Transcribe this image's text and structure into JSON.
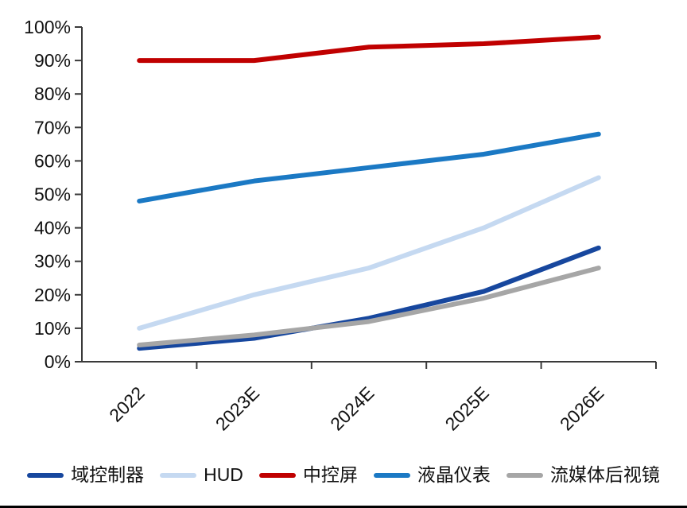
{
  "chart_data": {
    "type": "line",
    "title": "",
    "xlabel": "",
    "ylabel": "",
    "categories": [
      "2022",
      "2023E",
      "2024E",
      "2025E",
      "2026E"
    ],
    "series": [
      {
        "name": "域控制器",
        "color": "#17479E",
        "values": [
          4,
          7,
          13,
          21,
          34
        ]
      },
      {
        "name": "HUD",
        "color": "#C5D9F1",
        "values": [
          10,
          20,
          28,
          40,
          55
        ]
      },
      {
        "name": "中控屏",
        "color": "#C00000",
        "values": [
          90,
          90,
          94,
          95,
          97
        ]
      },
      {
        "name": "液晶仪表",
        "color": "#1B79C4",
        "values": [
          48,
          54,
          58,
          62,
          68
        ]
      },
      {
        "name": "流媒体后视镜",
        "color": "#A6A6A6",
        "values": [
          5,
          8,
          12,
          19,
          28
        ]
      }
    ],
    "ylim": [
      0,
      100
    ],
    "ytick_step": 10,
    "ytick_suffix": "%",
    "grid": false,
    "legend_position": "bottom"
  }
}
